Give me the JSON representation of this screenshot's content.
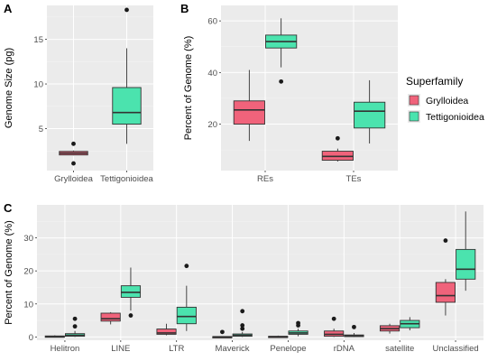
{
  "colors": {
    "grylloidea": "#F0637B",
    "tettigonioidea": "#4BE3AE",
    "panel_bg": "#EBEBEB",
    "grid_major": "#FFFFFF"
  },
  "legend": {
    "title": "Superfamily",
    "items": [
      {
        "label": "Grylloidea",
        "color": "#F0637B"
      },
      {
        "label": "Tettigonioidea",
        "color": "#4BE3AE"
      }
    ]
  },
  "chart_data": [
    {
      "id": "A",
      "panel_label": "A",
      "type": "box",
      "ylabel": "Genome Size (pg)",
      "xlabel": "",
      "ylim": [
        0.3,
        18.8
      ],
      "yticks": [
        5,
        10,
        15
      ],
      "categories": [
        "Grylloidea",
        "Tettigonioidea"
      ],
      "series": [
        {
          "name": "Grylloidea",
          "boxes": [
            {
              "category": "Grylloidea",
              "min": 2.0,
              "q1": 2.05,
              "median": 2.25,
              "q3": 2.45,
              "max": 2.55,
              "outliers": [
                3.3,
                1.1
              ]
            }
          ]
        },
        {
          "name": "Tettigonioidea",
          "boxes": [
            {
              "category": "Tettigonioidea",
              "min": 3.3,
              "q1": 5.5,
              "median": 6.8,
              "q3": 9.6,
              "max": 14.0,
              "outliers": [
                18.3
              ]
            }
          ]
        }
      ]
    },
    {
      "id": "B",
      "panel_label": "B",
      "type": "box",
      "ylabel": "Percent of Genome (%)",
      "xlabel": "",
      "ylim": [
        2,
        66
      ],
      "yticks": [
        20,
        40,
        60
      ],
      "categories": [
        "REs",
        "TEs"
      ],
      "series": [
        {
          "name": "Grylloidea",
          "boxes": [
            {
              "category": "REs",
              "min": 13.5,
              "q1": 20.0,
              "median": 25.5,
              "q3": 29.0,
              "max": 41.0,
              "outliers": []
            },
            {
              "category": "TEs",
              "min": 5.5,
              "q1": 6.0,
              "median": 7.5,
              "q3": 9.5,
              "max": 10.5,
              "outliers": [
                14.5
              ]
            }
          ]
        },
        {
          "name": "Tettigonioidea",
          "boxes": [
            {
              "category": "REs",
              "min": 42.0,
              "q1": 49.5,
              "median": 52.0,
              "q3": 54.5,
              "max": 61.0,
              "outliers": [
                36.5
              ]
            },
            {
              "category": "TEs",
              "min": 12.5,
              "q1": 18.5,
              "median": 25.0,
              "q3": 28.5,
              "max": 37.0,
              "outliers": []
            }
          ]
        }
      ]
    },
    {
      "id": "C",
      "panel_label": "C",
      "type": "box",
      "ylabel": "Percent of Genome (%)",
      "xlabel": "",
      "ylim": [
        -1,
        40
      ],
      "yticks": [
        0,
        10,
        20,
        30
      ],
      "categories": [
        "Helitron",
        "LINE",
        "LTR",
        "Maverick",
        "Penelope",
        "rDNA",
        "satellite",
        "Unclassified"
      ],
      "series": [
        {
          "name": "Grylloidea",
          "boxes": [
            {
              "category": "Helitron",
              "min": 0,
              "q1": 0.05,
              "median": 0.15,
              "q3": 0.3,
              "max": 0.5,
              "outliers": []
            },
            {
              "category": "LINE",
              "min": 3.8,
              "q1": 4.8,
              "median": 5.5,
              "q3": 7.2,
              "max": 7.5,
              "outliers": []
            },
            {
              "category": "LTR",
              "min": 0.5,
              "q1": 0.8,
              "median": 1.2,
              "q3": 2.4,
              "max": 4.0,
              "outliers": []
            },
            {
              "category": "Maverick",
              "min": 0,
              "q1": 0.02,
              "median": 0.05,
              "q3": 0.1,
              "max": 0.2,
              "outliers": [
                1.5
              ]
            },
            {
              "category": "Penelope",
              "min": 0,
              "q1": 0.02,
              "median": 0.08,
              "q3": 0.2,
              "max": 0.4,
              "outliers": []
            },
            {
              "category": "rDNA",
              "min": 0,
              "q1": 0.2,
              "median": 0.8,
              "q3": 1.8,
              "max": 2.5,
              "outliers": [
                5.5
              ]
            },
            {
              "category": "satellite",
              "min": 1.0,
              "q1": 1.8,
              "median": 2.5,
              "q3": 3.4,
              "max": 4.0,
              "outliers": []
            },
            {
              "category": "Unclassified",
              "min": 6.5,
              "q1": 10.5,
              "median": 12.5,
              "q3": 16.5,
              "max": 17.5,
              "outliers": [
                29.2
              ]
            }
          ]
        },
        {
          "name": "Tettigonioidea",
          "boxes": [
            {
              "category": "Helitron",
              "min": 0,
              "q1": 0.2,
              "median": 0.5,
              "q3": 1.0,
              "max": 1.8,
              "outliers": [
                3.2,
                5.5
              ]
            },
            {
              "category": "LINE",
              "min": 8.0,
              "q1": 12.0,
              "median": 13.5,
              "q3": 15.5,
              "max": 21.0,
              "outliers": [
                6.5
              ]
            },
            {
              "category": "LTR",
              "min": 1.8,
              "q1": 4.0,
              "median": 6.2,
              "q3": 9.0,
              "max": 15.5,
              "outliers": [
                21.5
              ]
            },
            {
              "category": "Maverick",
              "min": 0,
              "q1": 0.2,
              "median": 0.5,
              "q3": 0.9,
              "max": 1.5,
              "outliers": [
                2.5,
                3.5,
                7.8
              ]
            },
            {
              "category": "Penelope",
              "min": 0.2,
              "q1": 0.8,
              "median": 1.2,
              "q3": 1.8,
              "max": 2.5,
              "outliers": [
                3.5,
                4.2
              ]
            },
            {
              "category": "rDNA",
              "min": 0,
              "q1": 0.1,
              "median": 0.3,
              "q3": 0.6,
              "max": 1.2,
              "outliers": [
                3.0
              ]
            },
            {
              "category": "satellite",
              "min": 2.0,
              "q1": 2.8,
              "median": 4.0,
              "q3": 5.0,
              "max": 6.0,
              "outliers": []
            },
            {
              "category": "Unclassified",
              "min": 14.0,
              "q1": 17.5,
              "median": 20.5,
              "q3": 26.5,
              "max": 38.0,
              "outliers": []
            }
          ]
        }
      ]
    }
  ]
}
